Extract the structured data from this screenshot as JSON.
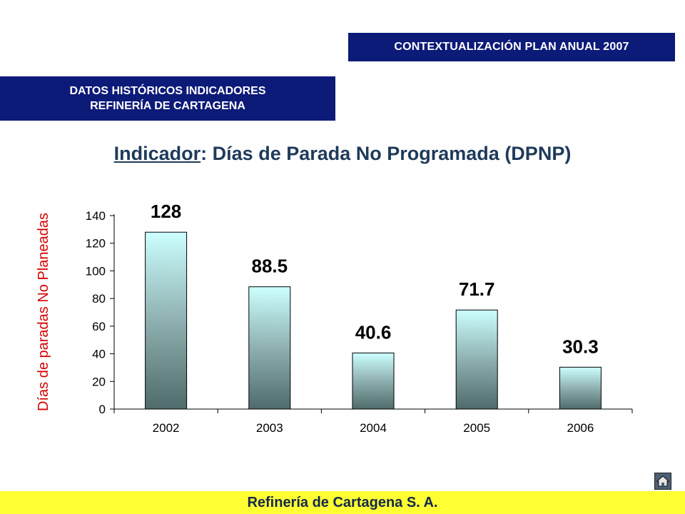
{
  "header": {
    "context_label": "CONTEXTUALIZACIÓN PLAN ANUAL 2007",
    "section_line1": "DATOS HISTÓRICOS INDICADORES",
    "section_line2": "REFINERÍA DE CARTAGENA"
  },
  "title": {
    "prefix": "Indicador",
    "rest": ":  Días de Parada No Programada (DPNP)"
  },
  "footer": {
    "company": "Refinería de Cartagena S. A."
  },
  "colors": {
    "banner": "#0c1a78",
    "footer": "#ffff33",
    "ylabel": "#d40000",
    "bar_top": "#ccffff",
    "bar_bottom": "#4f6b6b"
  },
  "icons": {
    "home": "home-icon"
  },
  "chart_data": {
    "type": "bar",
    "categories": [
      "2002",
      "2003",
      "2004",
      "2005",
      "2006"
    ],
    "values": [
      128,
      88.5,
      40.6,
      71.7,
      30.3
    ],
    "labels": [
      "128",
      "88.5",
      "40.6",
      "71.7",
      "30.3"
    ],
    "ylabel": "Días de paradas No Planeadas",
    "xlabel": "",
    "ylim": [
      0,
      140
    ],
    "yticks": [
      0,
      20,
      40,
      60,
      80,
      100,
      120,
      140
    ],
    "grid": false,
    "legend": "none"
  }
}
